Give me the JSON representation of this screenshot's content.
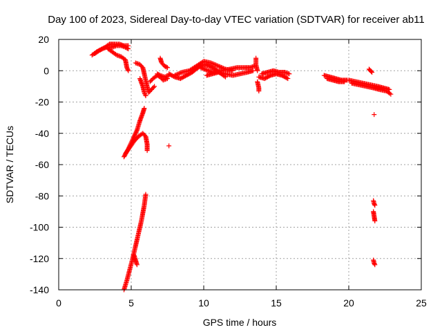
{
  "chart_data": {
    "type": "scatter",
    "title": "Day 100 of 2023, Sidereal Day-to-day VTEC variation (SDTVAR) for receiver ab11",
    "xlabel": "GPS time / hours",
    "ylabel": "SDTVAR / TECUs",
    "xlim": [
      0,
      25
    ],
    "ylim": [
      -140,
      20
    ],
    "xticks": [
      0,
      5,
      10,
      15,
      20,
      25
    ],
    "yticks": [
      20,
      0,
      -20,
      -40,
      -60,
      -80,
      -100,
      -120,
      -140
    ],
    "grid": true,
    "marker": "+",
    "series": [
      {
        "name": "SDTVAR",
        "color": "#ff0000",
        "segments": [
          [
            [
              2.3,
              10
            ],
            [
              2.6,
              12
            ],
            [
              3.0,
              14
            ],
            [
              3.3,
              15
            ],
            [
              3.7,
              15
            ],
            [
              4.0,
              16
            ],
            [
              4.3,
              16
            ],
            [
              4.6,
              15
            ],
            [
              4.8,
              14
            ]
          ],
          [
            [
              2.5,
              11
            ],
            [
              2.8,
              13
            ],
            [
              3.2,
              15
            ],
            [
              3.5,
              17
            ],
            [
              3.9,
              17
            ],
            [
              4.2,
              17
            ],
            [
              4.5,
              16
            ],
            [
              4.8,
              16
            ]
          ],
          [
            [
              3.4,
              14
            ],
            [
              3.7,
              12
            ],
            [
              4.0,
              10
            ],
            [
              4.3,
              9
            ],
            [
              4.6,
              7
            ],
            [
              4.7,
              2
            ],
            [
              4.8,
              0
            ]
          ],
          [
            [
              4.5,
              -55
            ],
            [
              4.8,
              -50
            ],
            [
              5.0,
              -46
            ],
            [
              5.2,
              -42
            ],
            [
              5.4,
              -38
            ],
            [
              5.6,
              -32
            ],
            [
              5.8,
              -27
            ],
            [
              5.9,
              -24
            ]
          ],
          [
            [
              4.6,
              -53
            ],
            [
              4.9,
              -49
            ],
            [
              5.2,
              -45
            ],
            [
              5.5,
              -42
            ],
            [
              5.8,
              -40
            ],
            [
              6.0,
              -42
            ],
            [
              6.1,
              -47
            ],
            [
              6.1,
              -51
            ]
          ],
          [
            [
              4.5,
              -140
            ],
            [
              4.7,
              -134
            ],
            [
              4.9,
              -127
            ],
            [
              5.1,
              -120
            ],
            [
              5.3,
              -112
            ],
            [
              5.5,
              -104
            ],
            [
              5.7,
              -96
            ],
            [
              5.9,
              -86
            ],
            [
              6.0,
              -79
            ]
          ],
          [
            [
              5.2,
              -118
            ],
            [
              5.3,
              -121
            ],
            [
              5.4,
              -124
            ]
          ],
          [
            [
              5.3,
              5
            ],
            [
              5.6,
              4
            ],
            [
              5.8,
              2
            ],
            [
              5.9,
              -2
            ],
            [
              6.0,
              -6
            ],
            [
              6.1,
              -10
            ],
            [
              6.2,
              -14
            ],
            [
              6.4,
              -12
            ],
            [
              6.6,
              -10
            ]
          ],
          [
            [
              5.6,
              -5
            ],
            [
              5.8,
              -10
            ],
            [
              5.9,
              -14
            ],
            [
              6.0,
              -16
            ]
          ],
          [
            [
              6.3,
              -7
            ],
            [
              6.5,
              -5
            ],
            [
              6.8,
              -3
            ],
            [
              7.0,
              -4
            ],
            [
              7.2,
              -6
            ],
            [
              7.5,
              -5
            ]
          ],
          [
            [
              6.8,
              -2
            ],
            [
              7.0,
              -3
            ],
            [
              7.3,
              -4
            ],
            [
              7.6,
              -3
            ]
          ],
          [
            [
              7.0,
              8
            ],
            [
              7.1,
              5
            ],
            [
              7.3,
              3
            ],
            [
              7.5,
              2
            ]
          ],
          [
            [
              7.6,
              -48
            ]
          ],
          [
            [
              7.6,
              -2
            ],
            [
              8.0,
              -4
            ],
            [
              8.4,
              -5
            ],
            [
              8.8,
              -3
            ],
            [
              9.2,
              -1
            ],
            [
              9.6,
              2
            ],
            [
              10.0,
              4
            ],
            [
              10.4,
              3
            ],
            [
              10.8,
              1
            ],
            [
              11.2,
              -2
            ],
            [
              11.5,
              -4
            ]
          ],
          [
            [
              8.0,
              -3
            ],
            [
              8.5,
              -1
            ],
            [
              9.0,
              0
            ],
            [
              9.5,
              3
            ],
            [
              10.0,
              6
            ],
            [
              10.5,
              5
            ],
            [
              11.0,
              3
            ],
            [
              11.5,
              1
            ],
            [
              12.0,
              0
            ]
          ],
          [
            [
              9.8,
              2
            ],
            [
              10.3,
              0
            ],
            [
              10.7,
              -1
            ],
            [
              11.2,
              0
            ],
            [
              11.8,
              1
            ],
            [
              12.3,
              2
            ],
            [
              12.8,
              2
            ],
            [
              13.2,
              2
            ],
            [
              13.5,
              3
            ]
          ],
          [
            [
              10.2,
              -3
            ],
            [
              10.6,
              -2
            ],
            [
              11.0,
              -1
            ],
            [
              11.5,
              -2
            ],
            [
              12.0,
              -3
            ],
            [
              12.5,
              -2
            ],
            [
              13.0,
              -1
            ],
            [
              13.4,
              0
            ]
          ],
          [
            [
              13.6,
              8
            ],
            [
              13.6,
              4
            ],
            [
              13.7,
              0
            ]
          ],
          [
            [
              13.7,
              -7
            ],
            [
              13.8,
              -11
            ],
            [
              13.8,
              -13
            ]
          ],
          [
            [
              13.8,
              -4
            ],
            [
              14.2,
              -5
            ],
            [
              14.6,
              -3
            ],
            [
              15.0,
              -2
            ],
            [
              15.4,
              -3
            ],
            [
              15.8,
              -5
            ]
          ],
          [
            [
              14.0,
              -2
            ],
            [
              14.4,
              -1
            ],
            [
              14.8,
              0
            ],
            [
              15.2,
              -1
            ],
            [
              15.6,
              -1
            ],
            [
              15.9,
              -2
            ]
          ],
          [
            [
              18.3,
              -3
            ],
            [
              18.7,
              -4
            ],
            [
              19.1,
              -5
            ],
            [
              19.5,
              -6
            ],
            [
              19.9,
              -6
            ]
          ],
          [
            [
              18.5,
              -5
            ],
            [
              18.9,
              -6
            ],
            [
              19.3,
              -7
            ],
            [
              19.7,
              -7
            ]
          ],
          [
            [
              20.0,
              -6
            ],
            [
              20.5,
              -7
            ],
            [
              21.0,
              -8
            ],
            [
              21.5,
              -9
            ],
            [
              22.0,
              -10
            ],
            [
              22.4,
              -11
            ],
            [
              22.8,
              -12
            ]
          ],
          [
            [
              20.2,
              -8
            ],
            [
              20.7,
              -9
            ],
            [
              21.2,
              -10
            ],
            [
              21.7,
              -11
            ],
            [
              22.1,
              -12
            ],
            [
              22.6,
              -13
            ],
            [
              22.9,
              -15
            ]
          ],
          [
            [
              21.4,
              1
            ],
            [
              21.5,
              0
            ],
            [
              21.6,
              -1
            ]
          ],
          [
            [
              21.75,
              -28
            ]
          ],
          [
            [
              21.7,
              -83
            ],
            [
              21.75,
              -85
            ],
            [
              21.8,
              -86
            ]
          ],
          [
            [
              21.7,
              -90
            ],
            [
              21.75,
              -93
            ],
            [
              21.8,
              -96
            ]
          ],
          [
            [
              21.7,
              -121
            ],
            [
              21.75,
              -123
            ],
            [
              21.8,
              -124
            ]
          ]
        ]
      }
    ]
  }
}
